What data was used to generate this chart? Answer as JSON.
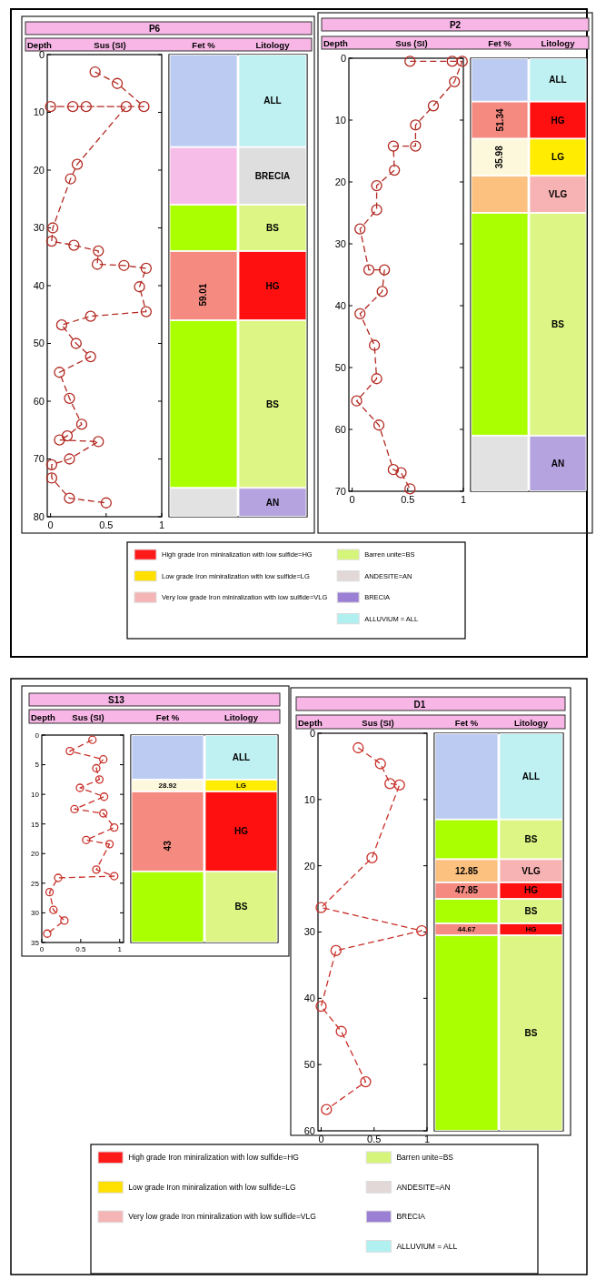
{
  "chart_data": [
    {
      "type": "line",
      "title": "P6",
      "xlabel": "Sus (SI)",
      "ylabel": "Depth",
      "xlim": [
        -0.03,
        1
      ],
      "xticks": [
        0,
        0.5,
        1
      ],
      "ylim": [
        80,
        0
      ],
      "yticks": [
        0,
        10,
        20,
        30,
        40,
        50,
        60,
        70,
        80
      ],
      "marker": "circle",
      "line_style": "dashed",
      "series": [
        {
          "color": "#b22a22",
          "x": [
            0.4,
            0.6,
            0.84,
            0,
            0.2,
            0.32,
            0.68,
            0.24,
            0.18,
            0.02,
            0.01,
            0.21,
            0.43,
            0.42,
            0.66,
            0.86,
            0.8,
            0.86,
            0.36,
            0.1,
            0.23,
            0.36,
            0.08,
            0.17,
            0.28,
            0.15,
            0.08,
            0.43,
            0.17,
            0.01,
            0.01,
            0.17,
            0.5
          ],
          "values": [
            3,
            5,
            9,
            9,
            9,
            9,
            9,
            19,
            21.5,
            30,
            32.3,
            33,
            34,
            36.3,
            36.5,
            37,
            40.2,
            44.5,
            45.3,
            46.8,
            50,
            52.3,
            55,
            59.5,
            64,
            66,
            66.7,
            67,
            70,
            71,
            73.3,
            76.8,
            77.6
          ]
        }
      ]
    },
    {
      "type": "bar",
      "stacked": true,
      "categories": [
        "Fet %",
        "Litology"
      ],
      "ylim": [
        80,
        0
      ],
      "tick_labels": "x",
      "series": [
        {
          "colors": [
            "#bccbf2",
            "#bff0f2"
          ],
          "values": [
            16,
            16
          ],
          "value_labels": [
            null,
            "ALL"
          ]
        },
        {
          "colors": [
            "#f7bde9",
            "#dedede"
          ],
          "values": [
            10,
            10
          ],
          "value_labels": [
            null,
            "BRECIA"
          ]
        },
        {
          "colors": [
            "#aaff00",
            "#dcf584"
          ],
          "values": [
            8,
            8
          ],
          "value_labels": [
            null,
            "BS"
          ]
        },
        {
          "colors": [
            "#f58a80",
            "#ff1010"
          ],
          "values": [
            12,
            12
          ],
          "value_labels": [
            null,
            "HG"
          ]
        },
        {
          "colors": [
            "#aaff00",
            "#dcf584"
          ],
          "values": [
            29,
            29
          ],
          "value_labels": [
            null,
            "BS"
          ]
        },
        {
          "colors": [
            "#e2e2e2",
            "#b5a3e0"
          ],
          "values": [
            5,
            5
          ],
          "value_labels": [
            null,
            "AN"
          ]
        }
      ],
      "annotations": [
        {
          "text": "59.01",
          "x": "Fet %",
          "y": 46
        }
      ]
    },
    {
      "type": "line",
      "title": "P2",
      "xlabel": "Sus (SI)",
      "ylabel": "Depth",
      "xlim": [
        -0.03,
        1
      ],
      "xticks": [
        0,
        0.5,
        1
      ],
      "ylim": [
        70,
        0
      ],
      "yticks": [
        0,
        10,
        20,
        30,
        40,
        50,
        60,
        70
      ],
      "marker": "circle",
      "line_style": "dashed",
      "series": [
        {
          "color": "#b22a22",
          "x": [
            0.52,
            0.9,
            0.99,
            0.92,
            0.73,
            0.57,
            0.57,
            0.37,
            0.38,
            0.22,
            0.22,
            0.07,
            0.15,
            0.29,
            0.27,
            0.07,
            0.2,
            0.22,
            0.04,
            0.24,
            0.37,
            0.44,
            0.52
          ],
          "values": [
            0.5,
            0.5,
            0.5,
            3.8,
            7.7,
            10.8,
            14.2,
            14.2,
            18.1,
            20.6,
            24.5,
            27.6,
            34.2,
            34.2,
            37.7,
            41.3,
            46.4,
            51.8,
            55.4,
            59.3,
            66.5,
            67,
            69.6
          ]
        }
      ]
    },
    {
      "type": "bar",
      "stacked": true,
      "categories": [
        "Fet %",
        "Litology"
      ],
      "ylim": [
        70,
        0
      ],
      "tick_labels": "x",
      "series": [
        {
          "colors": [
            "#bccbf2",
            "#bff0f2"
          ],
          "values": [
            7,
            7
          ],
          "value_labels": [
            null,
            "ALL"
          ]
        },
        {
          "colors": [
            "#f58a80",
            "#ff1010"
          ],
          "values": [
            6,
            6
          ],
          "value_labels": [
            null,
            "HG"
          ]
        },
        {
          "colors": [
            "#fdf8dc",
            "#ffec00"
          ],
          "values": [
            6,
            6
          ],
          "value_labels": [
            null,
            "LG"
          ]
        },
        {
          "colors": [
            "#fcc07f",
            "#f7b3b3"
          ],
          "values": [
            6,
            6
          ],
          "value_labels": [
            null,
            "VLG"
          ]
        },
        {
          "colors": [
            "#aaff00",
            "#dcf584"
          ],
          "values": [
            36,
            36
          ],
          "value_labels": [
            null,
            "BS"
          ]
        },
        {
          "colors": [
            "#e2e2e2",
            "#b5a3e0"
          ],
          "values": [
            9,
            9
          ],
          "value_labels": [
            null,
            "AN"
          ]
        }
      ],
      "annotations": [
        {
          "text": "51.34",
          "x": "Fet %",
          "y": 13
        },
        {
          "text": "35.98",
          "x": "Fet %",
          "y": 19
        }
      ]
    },
    {
      "type": "other",
      "series": [
        {
          "name": "High grade Iron miniralization with low sulfide=HG",
          "color": "#ff1a1a"
        },
        {
          "name": "Low grade Iron miniralization with low sulfide=LG",
          "color": "#ffe000"
        },
        {
          "name": "Very low grade Iron miniralization with low sulfide=VLG",
          "color": "#f5b5b5"
        },
        {
          "name": "Barren unite=BS",
          "color": "#d5f57a"
        },
        {
          "name": "ANDESITE=AN",
          "color": "#e2d8d8"
        },
        {
          "name": "BRECIA",
          "color": "#9a7fd4"
        },
        {
          "name": "ALLUVIUM = ALL",
          "color": "#b0f0f0"
        }
      ]
    },
    {
      "type": "line",
      "title": "S13",
      "xlabel": "Sus (SI)",
      "ylabel": "Depth",
      "xlim": [
        0,
        1.05
      ],
      "xticks": [
        0,
        0.5,
        1
      ],
      "ylim": [
        35,
        0
      ],
      "yticks": [
        0,
        5,
        10,
        15,
        20,
        25,
        30,
        35
      ],
      "marker": "circle",
      "line_style": "dashed",
      "series": [
        {
          "color": "#c8302a",
          "x": [
            0.65,
            0.36,
            0.79,
            0.7,
            0.74,
            0.49,
            0.8,
            0.42,
            0.79,
            0.93,
            0.57,
            0.87,
            0.7,
            0.93,
            0.21,
            0.1,
            0.15,
            0.29,
            0.07
          ],
          "values": [
            0.8,
            2.7,
            4.1,
            5.6,
            7.5,
            8.9,
            10.4,
            12.5,
            13.2,
            15.6,
            17.7,
            18.4,
            22.7,
            23.8,
            24.1,
            26.5,
            29.5,
            31.3,
            33.5
          ]
        }
      ]
    },
    {
      "type": "bar",
      "stacked": true,
      "categories": [
        "Fet %",
        "Litology"
      ],
      "ylim": [
        35,
        0
      ],
      "tick_labels": "x",
      "series": [
        {
          "colors": [
            "#bccbf2",
            "#bff0f2"
          ],
          "values": [
            7.5,
            7.5
          ],
          "value_labels": [
            null,
            "ALL"
          ]
        },
        {
          "colors": [
            "#fdf8dc",
            "#ffec00"
          ],
          "values": [
            2,
            2
          ],
          "value_labels": [
            null,
            "LG"
          ]
        },
        {
          "colors": [
            "#f58a80",
            "#ff1010"
          ],
          "values": [
            13.5,
            13.5
          ],
          "value_labels": [
            null,
            "HG"
          ]
        },
        {
          "colors": [
            "#aaff00",
            "#dcf584"
          ],
          "values": [
            12,
            12
          ],
          "value_labels": [
            null,
            "BS"
          ]
        }
      ],
      "annotations": [
        {
          "text": "28.92",
          "x": "Fet %",
          "y": 9.5
        },
        {
          "text": "43",
          "x": "Fet %",
          "y": 23
        }
      ]
    },
    {
      "type": "line",
      "title": "D1",
      "xlabel": "Sus (SI)",
      "ylabel": "Depth",
      "xlim": [
        -0.03,
        1
      ],
      "xticks": [
        0,
        0.5,
        1
      ],
      "ylim": [
        60,
        0
      ],
      "yticks": [
        0,
        10,
        20,
        30,
        40,
        50,
        60
      ],
      "marker": "circle",
      "line_style": "dashed",
      "series": [
        {
          "color": "#c8302a",
          "x": [
            0.35,
            0.56,
            0.65,
            0.74,
            0.48,
            0,
            0.95,
            0.14,
            0,
            0.19,
            0.42,
            0.05
          ],
          "values": [
            2.2,
            4.6,
            7.6,
            7.8,
            18.8,
            26.3,
            29.8,
            32.8,
            41.2,
            45,
            52.6,
            56.8
          ]
        }
      ]
    },
    {
      "type": "bar",
      "stacked": true,
      "categories": [
        "Fet %",
        "Litology"
      ],
      "ylim": [
        60,
        0
      ],
      "tick_labels": "x",
      "series": [
        {
          "colors": [
            "#bccbf2",
            "#bff0f2"
          ],
          "values": [
            13,
            13
          ],
          "value_labels": [
            null,
            "ALL"
          ]
        },
        {
          "colors": [
            "#aaff00",
            "#dcf584"
          ],
          "values": [
            6,
            6
          ],
          "value_labels": [
            null,
            "BS"
          ]
        },
        {
          "colors": [
            "#fcc07f",
            "#f7b3b3"
          ],
          "values": [
            3.5,
            3.5
          ],
          "value_labels": [
            null,
            "VLG"
          ]
        },
        {
          "colors": [
            "#f58a80",
            "#ff1010"
          ],
          "values": [
            2.5,
            2.5
          ],
          "value_labels": [
            null,
            "HG"
          ]
        },
        {
          "colors": [
            "#aaff00",
            "#dcf584"
          ],
          "values": [
            3.7,
            3.7
          ],
          "value_labels": [
            null,
            "BS"
          ]
        },
        {
          "colors": [
            "#f58a80",
            "#ff1010"
          ],
          "values": [
            1.8,
            1.8
          ],
          "value_labels": [
            null,
            "HG"
          ]
        },
        {
          "colors": [
            "#aaff00",
            "#dcf584"
          ],
          "values": [
            29.5,
            29.5
          ],
          "value_labels": [
            null,
            "BS"
          ]
        }
      ],
      "annotations": [
        {
          "text": "12.85",
          "x": "Fet %",
          "y": 22.5
        },
        {
          "text": "47.85",
          "x": "Fet %",
          "y": 25
        },
        {
          "text": "44.67",
          "x": "Fet %",
          "y": 30.5
        }
      ]
    },
    {
      "type": "other",
      "series": [
        {
          "name": "High grade Iron miniralization with low sulfide=HG",
          "color": "#ff1a1a"
        },
        {
          "name": "Low grade Iron miniralization with low sulfide=LG",
          "color": "#ffe000"
        },
        {
          "name": "Very low grade Iron miniralization with low sulfide=VLG",
          "color": "#f5b5b5"
        },
        {
          "name": "Barren unite=BS",
          "color": "#d5f57a"
        },
        {
          "name": "ANDESITE=AN",
          "color": "#e2d8d8"
        },
        {
          "name": "BRECIA",
          "color": "#9a7fd4"
        },
        {
          "name": "ALLUVIUM = ALL",
          "color": "#b0f0f0"
        }
      ]
    }
  ]
}
